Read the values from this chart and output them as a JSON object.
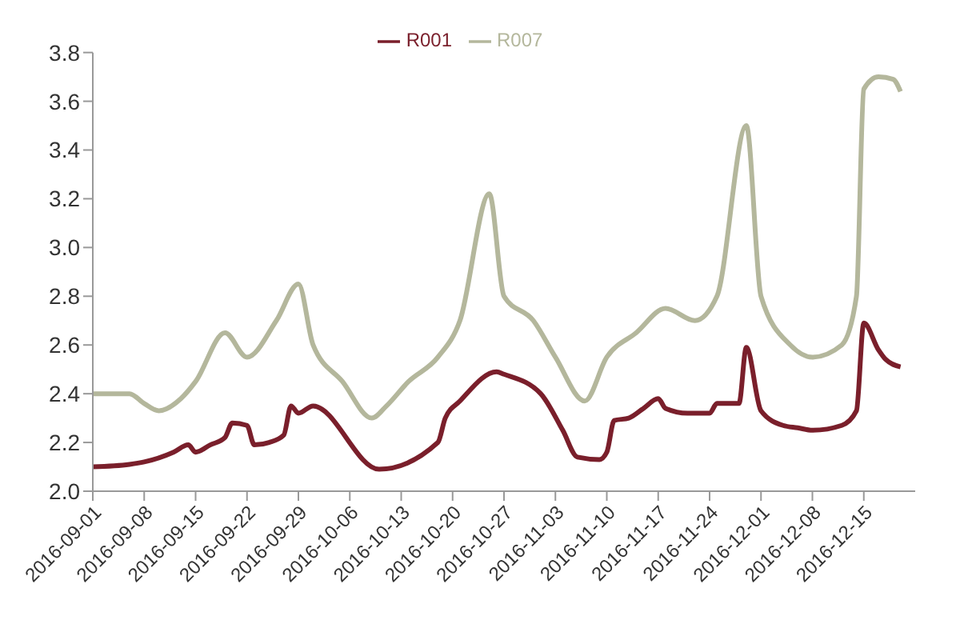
{
  "chart_data": {
    "type": "line",
    "legend": "top",
    "grid": false,
    "marker": "none",
    "line_style": "solid",
    "xlim": [
      "2016-09-01",
      "2016-12-22"
    ],
    "xticks": [
      "2016-09-01",
      "2016-09-08",
      "2016-09-15",
      "2016-09-22",
      "2016-09-29",
      "2016-10-06",
      "2016-10-13",
      "2016-10-20",
      "2016-10-27",
      "2016-11-03",
      "2016-11-10",
      "2016-11-17",
      "2016-11-24",
      "2016-12-01",
      "2016-12-08",
      "2016-12-15"
    ],
    "ylim": [
      2.0,
      3.8
    ],
    "yticks": [
      {
        "value": 2.0,
        "label": "2.0"
      },
      {
        "value": 2.2,
        "label": "2.2"
      },
      {
        "value": 2.4,
        "label": "2.4"
      },
      {
        "value": 2.6,
        "label": "2.6"
      },
      {
        "value": 2.8,
        "label": "2.8"
      },
      {
        "value": 3.0,
        "label": "3.0"
      },
      {
        "value": 3.2,
        "label": "3.2"
      },
      {
        "value": 3.4,
        "label": "3.4"
      },
      {
        "value": 3.6,
        "label": "3.6"
      },
      {
        "value": 3.8,
        "label": "3.8"
      }
    ],
    "series": [
      {
        "name": "R001",
        "color": "#7a1f2b",
        "x": [
          "2016-09-01",
          "2016-09-06",
          "2016-09-08",
          "2016-09-12",
          "2016-09-14",
          "2016-09-15",
          "2016-09-17",
          "2016-09-19",
          "2016-09-20",
          "2016-09-22",
          "2016-09-23",
          "2016-09-25",
          "2016-09-27",
          "2016-09-28",
          "2016-09-29",
          "2016-10-01",
          "2016-10-10",
          "2016-10-18",
          "2016-10-19",
          "2016-10-21",
          "2016-10-26",
          "2016-10-27",
          "2016-11-01",
          "2016-11-04",
          "2016-11-06",
          "2016-11-09",
          "2016-11-10",
          "2016-11-11",
          "2016-11-13",
          "2016-11-15",
          "2016-11-17",
          "2016-11-18",
          "2016-11-21",
          "2016-11-24",
          "2016-11-25",
          "2016-11-28",
          "2016-11-29",
          "2016-12-01",
          "2016-12-04",
          "2016-12-06",
          "2016-12-08",
          "2016-12-12",
          "2016-12-14",
          "2016-12-15",
          "2016-12-17",
          "2016-12-18",
          "2016-12-20"
        ],
        "values": [
          2.1,
          2.11,
          2.12,
          2.16,
          2.19,
          2.16,
          2.19,
          2.22,
          2.28,
          2.27,
          2.19,
          2.2,
          2.23,
          2.35,
          2.32,
          2.35,
          2.09,
          2.2,
          2.3,
          2.37,
          2.49,
          2.48,
          2.4,
          2.25,
          2.14,
          2.13,
          2.16,
          2.29,
          2.3,
          2.34,
          2.38,
          2.34,
          2.32,
          2.32,
          2.36,
          2.36,
          2.59,
          2.33,
          2.27,
          2.26,
          2.25,
          2.27,
          2.33,
          2.69,
          2.58,
          2.54,
          2.51
        ]
      },
      {
        "name": "R007",
        "color": "#b4b79c",
        "x": [
          "2016-09-01",
          "2016-09-06",
          "2016-09-08",
          "2016-09-10",
          "2016-09-13",
          "2016-09-15",
          "2016-09-19",
          "2016-09-22",
          "2016-09-26",
          "2016-09-29",
          "2016-10-01",
          "2016-10-05",
          "2016-10-09",
          "2016-10-11",
          "2016-10-14",
          "2016-10-18",
          "2016-10-21",
          "2016-10-25",
          "2016-10-27",
          "2016-10-31",
          "2016-11-03",
          "2016-11-07",
          "2016-11-10",
          "2016-11-14",
          "2016-11-18",
          "2016-11-22",
          "2016-11-25",
          "2016-11-29",
          "2016-12-01",
          "2016-12-05",
          "2016-12-08",
          "2016-12-12",
          "2016-12-14",
          "2016-12-15",
          "2016-12-17",
          "2016-12-19",
          "2016-12-20"
        ],
        "values": [
          2.4,
          2.4,
          2.36,
          2.33,
          2.38,
          2.45,
          2.65,
          2.55,
          2.7,
          2.85,
          2.6,
          2.45,
          2.3,
          2.35,
          2.45,
          2.55,
          2.7,
          3.22,
          2.8,
          2.7,
          2.55,
          2.37,
          2.55,
          2.65,
          2.75,
          2.7,
          2.8,
          3.5,
          2.8,
          2.6,
          2.55,
          2.6,
          2.8,
          3.65,
          3.7,
          3.69,
          3.64
        ]
      }
    ]
  }
}
